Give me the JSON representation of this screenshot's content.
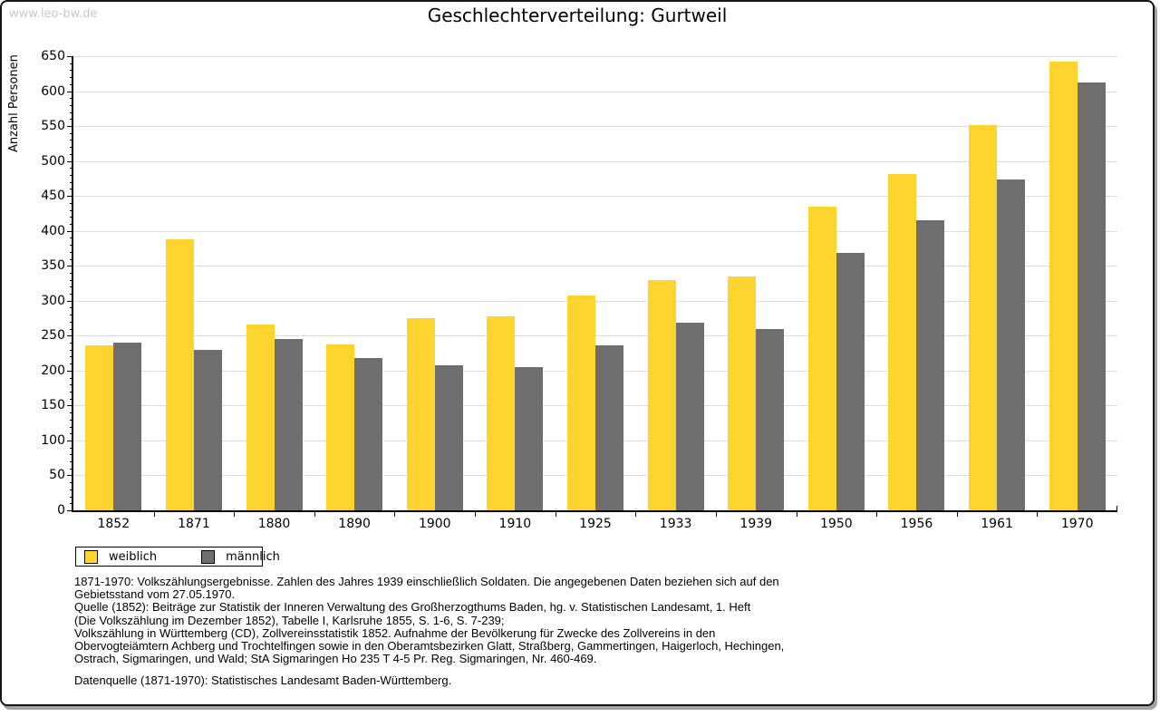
{
  "watermark": "www.leo-bw.de",
  "title": "Geschlechterverteilung: Gurtweil",
  "chart_data": {
    "type": "bar",
    "title": "Geschlechterverteilung: Gurtweil",
    "ylabel": "Anzahl Personen",
    "xlabel": "",
    "ylim": [
      0,
      650
    ],
    "ytick_step": 50,
    "yminor_step": 10,
    "grid": true,
    "legend_position": "bottom-left",
    "categories": [
      "1852",
      "1871",
      "1880",
      "1890",
      "1900",
      "1910",
      "1925",
      "1933",
      "1939",
      "1950",
      "1956",
      "1961",
      "1970"
    ],
    "series": [
      {
        "name": "weiblich",
        "color": "#fcd42d",
        "values": [
          236,
          388,
          266,
          238,
          275,
          278,
          308,
          330,
          335,
          434,
          481,
          551,
          642
        ]
      },
      {
        "name": "männlich",
        "color": "#6e6e6e",
        "values": [
          240,
          230,
          245,
          218,
          207,
          205,
          236,
          269,
          260,
          368,
          415,
          474,
          612
        ]
      }
    ]
  },
  "footnotes": {
    "lines": [
      "1871-1970: Volkszählungsergebnisse. Zahlen des Jahres 1939 einschließlich Soldaten. Die angegebenen Daten beziehen sich auf den",
      "Gebietsstand vom 27.05.1970.",
      "Quelle (1852): Beiträge zur Statistik der Inneren Verwaltung des Großherzogthums Baden, hg. v. Statistischen Landesamt, 1. Heft",
      "(Die Volkszählung im Dezember 1852), Tabelle I, Karlsruhe 1855, S. 1-6, S. 7-239;",
      "Volkszählung in Württemberg (CD), Zollvereinsstatistik 1852. Aufnahme der Bevölkerung für Zwecke des Zollvereins in den",
      "Obervogteiämtern Achberg und Trochtelfingen sowie in den Oberamtsbezirken Glatt, Straßberg, Gammertingen, Haigerloch, Hechingen,",
      "Ostrach, Sigmaringen, und Wald; StA Sigmaringen Ho 235 T 4-5 Pr. Reg. Sigmaringen, Nr. 460-469."
    ],
    "datasource": "Datenquelle (1871-1970): Statistisches Landesamt Baden-Württemberg."
  },
  "colors": {
    "female_bar": "#fcd42d",
    "male_bar": "#6e6e6e",
    "gridline": "#dcdcdc",
    "axis": "#000000",
    "watermark": "#c8c8c8",
    "frame_border": "#141414",
    "frame_shadow": "#a3a3a3"
  }
}
